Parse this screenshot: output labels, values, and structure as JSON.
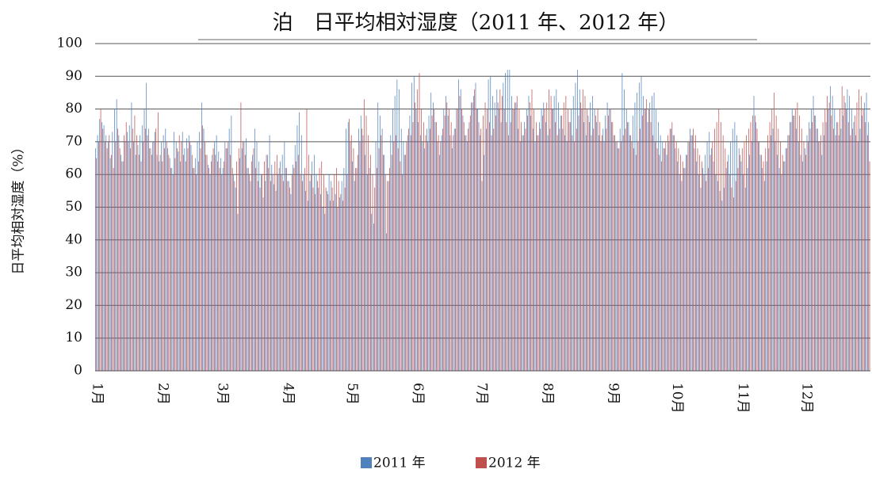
{
  "chart_data": {
    "type": "bar",
    "title": "泊　日平均相対湿度（2011 年、2012 年）",
    "y_label": "日平均相対湿度（%）",
    "categories": [
      "1月",
      null,
      null,
      null,
      null,
      null,
      null,
      null,
      null,
      null,
      null,
      null,
      null,
      null,
      null,
      null,
      null,
      null,
      null,
      null,
      null,
      null,
      null,
      null,
      null,
      null,
      null,
      null,
      null,
      null,
      null,
      "2月",
      null,
      null,
      null,
      null,
      null,
      null,
      null,
      null,
      null,
      null,
      null,
      null,
      null,
      null,
      null,
      null,
      null,
      null,
      null,
      null,
      null,
      null,
      null,
      null,
      null,
      null,
      null,
      "3月",
      null,
      null,
      null,
      null,
      null,
      null,
      null,
      null,
      null,
      null,
      null,
      null,
      null,
      null,
      null,
      null,
      null,
      null,
      null,
      null,
      null,
      null,
      null,
      null,
      null,
      null,
      null,
      null,
      null,
      null,
      "4月",
      null,
      null,
      null,
      null,
      null,
      null,
      null,
      null,
      null,
      null,
      null,
      null,
      null,
      null,
      null,
      null,
      null,
      null,
      null,
      null,
      null,
      null,
      null,
      null,
      null,
      null,
      null,
      null,
      null,
      "5月",
      null,
      null,
      null,
      null,
      null,
      null,
      null,
      null,
      null,
      null,
      null,
      null,
      null,
      null,
      null,
      null,
      null,
      null,
      null,
      null,
      null,
      null,
      null,
      null,
      null,
      null,
      null,
      null,
      null,
      null,
      "6月",
      null,
      null,
      null,
      null,
      null,
      null,
      null,
      null,
      null,
      null,
      null,
      null,
      null,
      null,
      null,
      null,
      null,
      null,
      null,
      null,
      null,
      null,
      null,
      null,
      null,
      null,
      null,
      null,
      null,
      "7月",
      null,
      null,
      null,
      null,
      null,
      null,
      null,
      null,
      null,
      null,
      null,
      null,
      null,
      null,
      null,
      null,
      null,
      null,
      null,
      null,
      null,
      null,
      null,
      null,
      null,
      null,
      null,
      null,
      null,
      null,
      "8月",
      null,
      null,
      null,
      null,
      null,
      null,
      null,
      null,
      null,
      null,
      null,
      null,
      null,
      null,
      null,
      null,
      null,
      null,
      null,
      null,
      null,
      null,
      null,
      null,
      null,
      null,
      null,
      null,
      null,
      null,
      "9月",
      null,
      null,
      null,
      null,
      null,
      null,
      null,
      null,
      null,
      null,
      null,
      null,
      null,
      null,
      null,
      null,
      null,
      null,
      null,
      null,
      null,
      null,
      null,
      null,
      null,
      null,
      null,
      null,
      null,
      "10月",
      null,
      null,
      null,
      null,
      null,
      null,
      null,
      null,
      null,
      null,
      null,
      null,
      null,
      null,
      null,
      null,
      null,
      null,
      null,
      null,
      null,
      null,
      null,
      null,
      null,
      null,
      null,
      null,
      null,
      null,
      "11月",
      null,
      null,
      null,
      null,
      null,
      null,
      null,
      null,
      null,
      null,
      null,
      null,
      null,
      null,
      null,
      null,
      null,
      null,
      null,
      null,
      null,
      null,
      null,
      null,
      null,
      null,
      null,
      null,
      null,
      "12月",
      null,
      null,
      null,
      null,
      null,
      null,
      null,
      null,
      null,
      null,
      null,
      null,
      null,
      null,
      null,
      null,
      null,
      null,
      null,
      null,
      null,
      null,
      null,
      null,
      null,
      null,
      null,
      null,
      null,
      null
    ],
    "series": [
      {
        "name": "2011 年",
        "color": "#4f81bd",
        "values": [
          68,
          72,
          77,
          76,
          75,
          72,
          70,
          65,
          73,
          80,
          83,
          72,
          66,
          64,
          70,
          73,
          75,
          82,
          70,
          66,
          69,
          72,
          75,
          80,
          88,
          74,
          68,
          70,
          73,
          66,
          64,
          70,
          72,
          74,
          68,
          65,
          62,
          73,
          70,
          67,
          64,
          73,
          68,
          71,
          72,
          69,
          62,
          65,
          70,
          73,
          82,
          74,
          66,
          63,
          60,
          66,
          70,
          72,
          67,
          65,
          62,
          70,
          68,
          74,
          78,
          60,
          56,
          48,
          65,
          68,
          70,
          71,
          62,
          58,
          66,
          74,
          70,
          64,
          60,
          53,
          58,
          66,
          72,
          63,
          57,
          55,
          60,
          64,
          66,
          70,
          62,
          58,
          54,
          63,
          69,
          75,
          79,
          72,
          60,
          55,
          52,
          58,
          64,
          66,
          60,
          56,
          54,
          50,
          48,
          55,
          60,
          58,
          52,
          54,
          50,
          53,
          58,
          62,
          74,
          76,
          70,
          64,
          58,
          62,
          74,
          78,
          72,
          66,
          60,
          62,
          48,
          45,
          70,
          82,
          78,
          74,
          66,
          42,
          58,
          72,
          80,
          84,
          89,
          86,
          74,
          70,
          66,
          72,
          78,
          88,
          90,
          80,
          76,
          72,
          70,
          68,
          74,
          78,
          85,
          82,
          76,
          70,
          66,
          72,
          80,
          84,
          78,
          72,
          68,
          74,
          80,
          89,
          86,
          78,
          72,
          70,
          76,
          82,
          84,
          88,
          80,
          72,
          58,
          66,
          74,
          89,
          90,
          84,
          82,
          86,
          80,
          76,
          88,
          91,
          92,
          92,
          84,
          80,
          82,
          74,
          70,
          72,
          76,
          80,
          84,
          78,
          74,
          70,
          72,
          76,
          80,
          82,
          76,
          72,
          74,
          80,
          84,
          86,
          82,
          78,
          74,
          72,
          70,
          76,
          80,
          84,
          88,
          92,
          86,
          80,
          76,
          72,
          78,
          82,
          84,
          80,
          76,
          72,
          70,
          74,
          78,
          82,
          80,
          76,
          72,
          70,
          68,
          74,
          91,
          86,
          80,
          76,
          72,
          78,
          82,
          85,
          88,
          90,
          84,
          80,
          76,
          82,
          84,
          85,
          80,
          76,
          72,
          70,
          68,
          66,
          70,
          74,
          72,
          68,
          64,
          60,
          58,
          62,
          66,
          70,
          74,
          72,
          68,
          64,
          60,
          56,
          62,
          66,
          70,
          73,
          68,
          64,
          60,
          58,
          55,
          52,
          56,
          62,
          66,
          70,
          74,
          76,
          72,
          68,
          64,
          60,
          56,
          62,
          66,
          70,
          84,
          76,
          70,
          66,
          62,
          58,
          64,
          68,
          72,
          74,
          70,
          66,
          62,
          60,
          64,
          68,
          72,
          76,
          80,
          78,
          74,
          70,
          66,
          64,
          68,
          72,
          76,
          80,
          84,
          78,
          74,
          70,
          66,
          72,
          76,
          80,
          87,
          84,
          80,
          76,
          72,
          74,
          78,
          82,
          86,
          84,
          80,
          76,
          72,
          70,
          74,
          78,
          82,
          85,
          76
        ]
      },
      {
        "name": "2012 年",
        "color": "#c0504d",
        "values": [
          65,
          70,
          80,
          74,
          70,
          68,
          72,
          66,
          62,
          70,
          74,
          68,
          64,
          72,
          76,
          70,
          68,
          74,
          78,
          72,
          66,
          64,
          70,
          74,
          72,
          68,
          66,
          70,
          74,
          79,
          66,
          64,
          68,
          70,
          66,
          62,
          60,
          65,
          68,
          72,
          70,
          66,
          64,
          68,
          70,
          66,
          62,
          60,
          64,
          68,
          75,
          70,
          66,
          62,
          64,
          68,
          66,
          64,
          62,
          60,
          64,
          68,
          70,
          66,
          62,
          58,
          64,
          68,
          82,
          70,
          66,
          62,
          60,
          64,
          68,
          62,
          58,
          56,
          60,
          64,
          66,
          62,
          58,
          60,
          64,
          66,
          62,
          60,
          58,
          62,
          58,
          56,
          60,
          62,
          64,
          66,
          60,
          58,
          62,
          80,
          66,
          60,
          56,
          54,
          58,
          62,
          64,
          60,
          56,
          54,
          52,
          56,
          60,
          62,
          58,
          54,
          52,
          56,
          60,
          77,
          72,
          68,
          62,
          66,
          70,
          74,
          83,
          78,
          72,
          66,
          60,
          56,
          62,
          68,
          72,
          66,
          60,
          58,
          62,
          66,
          70,
          72,
          68,
          64,
          60,
          66,
          70,
          74,
          72,
          76,
          82,
          86,
          91,
          80,
          76,
          72,
          70,
          74,
          78,
          80,
          76,
          72,
          70,
          74,
          78,
          82,
          80,
          76,
          72,
          74,
          80,
          84,
          80,
          76,
          72,
          74,
          78,
          82,
          86,
          80,
          76,
          74,
          78,
          82,
          80,
          76,
          72,
          74,
          78,
          82,
          86,
          84,
          80,
          76,
          72,
          76,
          80,
          82,
          84,
          80,
          76,
          72,
          74,
          78,
          82,
          86,
          80,
          76,
          72,
          74,
          78,
          80,
          82,
          86,
          84,
          80,
          76,
          72,
          74,
          78,
          82,
          84,
          80,
          76,
          72,
          70,
          74,
          78,
          82,
          86,
          84,
          80,
          76,
          72,
          74,
          78,
          80,
          76,
          72,
          70,
          74,
          78,
          80,
          76,
          72,
          70,
          68,
          70,
          72,
          74,
          76,
          72,
          70,
          68,
          66,
          70,
          74,
          78,
          80,
          83,
          80,
          76,
          72,
          70,
          68,
          66,
          64,
          68,
          70,
          72,
          74,
          76,
          72,
          70,
          68,
          66,
          64,
          62,
          66,
          70,
          72,
          74,
          72,
          68,
          66,
          64,
          60,
          58,
          62,
          66,
          70,
          74,
          76,
          80,
          76,
          72,
          68,
          64,
          60,
          56,
          53,
          58,
          62,
          66,
          68,
          70,
          72,
          74,
          76,
          78,
          78,
          74,
          70,
          66,
          64,
          68,
          72,
          76,
          80,
          85,
          78,
          74,
          70,
          66,
          64,
          68,
          72,
          76,
          78,
          80,
          82,
          78,
          74,
          70,
          66,
          70,
          74,
          76,
          78,
          74,
          70,
          72,
          76,
          80,
          84,
          82,
          78,
          74,
          72,
          76,
          80,
          87,
          84,
          80,
          76,
          72,
          74,
          78,
          82,
          86,
          84,
          80,
          76,
          72,
          64
        ]
      }
    ],
    "ylim": [
      0,
      100
    ],
    "yticks": [
      0,
      10,
      20,
      30,
      40,
      50,
      60,
      70,
      80,
      90,
      100
    ],
    "grid": true,
    "legend": "bottom"
  }
}
